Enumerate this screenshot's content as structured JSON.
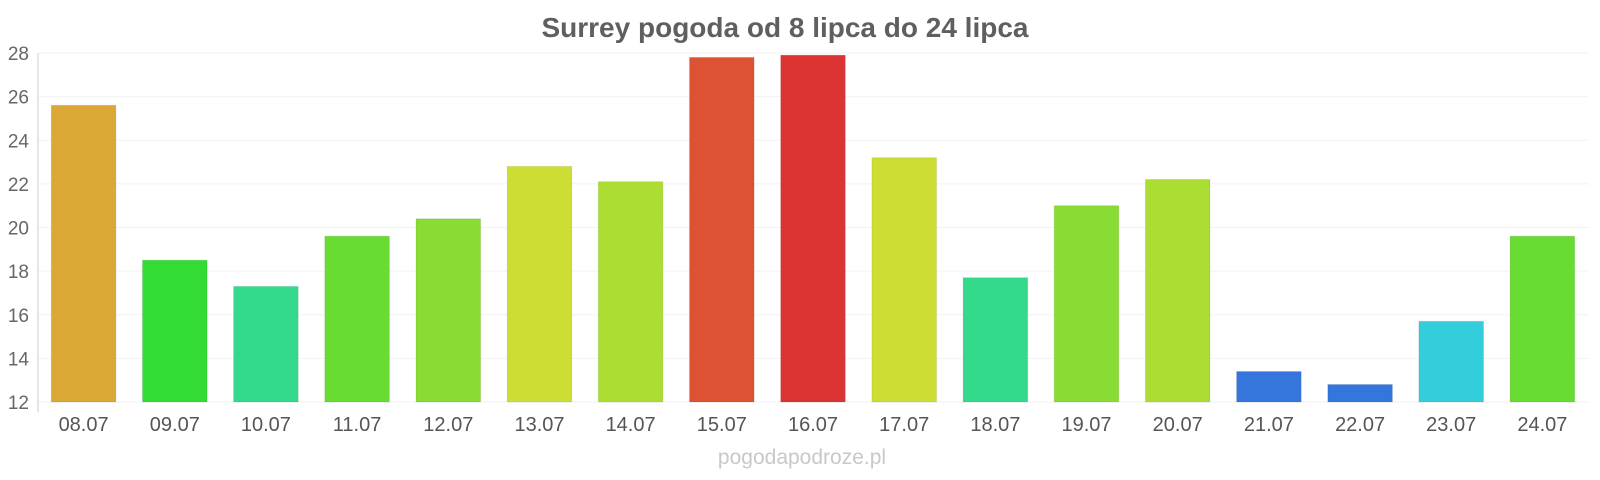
{
  "chart_data": {
    "type": "bar",
    "title": "Surrey pogoda od 8 lipca do 24 lipca",
    "xlabel": "",
    "ylabel": "",
    "ylim": [
      12,
      28
    ],
    "yticks": [
      12,
      14,
      16,
      18,
      20,
      22,
      24,
      26,
      28
    ],
    "grid": true,
    "categories": [
      "08.07",
      "09.07",
      "10.07",
      "11.07",
      "12.07",
      "13.07",
      "14.07",
      "15.07",
      "16.07",
      "17.07",
      "18.07",
      "19.07",
      "20.07",
      "21.07",
      "22.07",
      "23.07",
      "24.07"
    ],
    "values": [
      25.6,
      18.5,
      17.3,
      19.6,
      20.4,
      22.8,
      22.1,
      27.8,
      27.9,
      23.2,
      17.7,
      21.0,
      22.2,
      13.4,
      12.8,
      15.7,
      19.6
    ],
    "colors": [
      "#dba835",
      "#33dc35",
      "#34da8c",
      "#69dc34",
      "#89dc34",
      "#ccdd33",
      "#acdd33",
      "#dd5233",
      "#dc3333",
      "#ccdd33",
      "#34da8c",
      "#89dc34",
      "#acdd33",
      "#3476db",
      "#3476db",
      "#34cddb",
      "#69dc34"
    ],
    "watermark": "pogodapodroze.pl"
  }
}
